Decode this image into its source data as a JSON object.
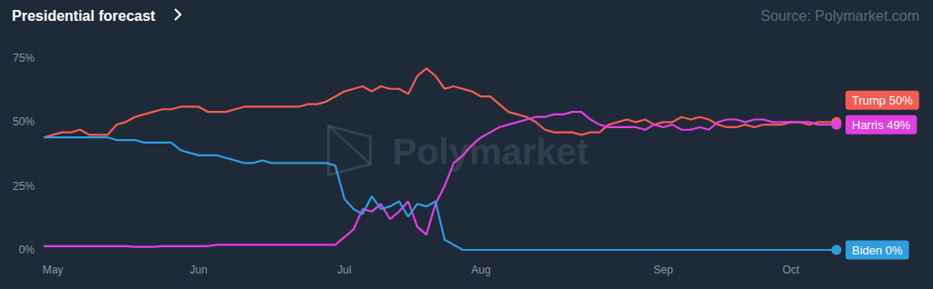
{
  "chart_data": {
    "type": "line",
    "title": "Presidential forecast",
    "source": "Source: Polymarket.com",
    "watermark": "Polymarket",
    "categories": [
      null,
      "May",
      null,
      null,
      null,
      null,
      null,
      null,
      null,
      null,
      null,
      null,
      null,
      null,
      null,
      null,
      null,
      "Jun",
      null,
      null,
      null,
      null,
      null,
      null,
      null,
      null,
      null,
      null,
      null,
      null,
      null,
      null,
      null,
      "Jul",
      null,
      null,
      null,
      null,
      null,
      null,
      null,
      null,
      null,
      null,
      null,
      null,
      null,
      null,
      "Aug",
      null,
      null,
      null,
      null,
      null,
      null,
      null,
      null,
      null,
      null,
      null,
      null,
      null,
      null,
      null,
      null,
      null,
      null,
      null,
      "Sep",
      null,
      null,
      null,
      null,
      null,
      null,
      null,
      null,
      null,
      null,
      null,
      null,
      null,
      "Oct",
      null,
      null,
      null,
      null,
      null
    ],
    "series": [
      {
        "name": "Trump",
        "color": "#f45b52",
        "end_label": "Trump 50%",
        "values": [
          44,
          45,
          46,
          46,
          47,
          45,
          45,
          45,
          49,
          50,
          52,
          53,
          54,
          55,
          55,
          56,
          56,
          56,
          54,
          54,
          54,
          55,
          56,
          56,
          56,
          56,
          56,
          56,
          56,
          57,
          57,
          58,
          60,
          62,
          63,
          64,
          62,
          64,
          63,
          63,
          61,
          68,
          71,
          68,
          63,
          64,
          63,
          62,
          60,
          60,
          57,
          54,
          53,
          52,
          50,
          47,
          46,
          46,
          46,
          45,
          46,
          46,
          49,
          50,
          51,
          50,
          51,
          49,
          50,
          50,
          52,
          51,
          52,
          51,
          49,
          48,
          48,
          49,
          48,
          49,
          49,
          49,
          50,
          50,
          49,
          50,
          50,
          50
        ]
      },
      {
        "name": "Harris",
        "color": "#e23fe0",
        "end_label": "Harris 49%",
        "values": [
          1.5,
          1.5,
          1.5,
          1.5,
          1.5,
          1.5,
          1.5,
          1.5,
          1.5,
          1.5,
          1.2,
          1.2,
          1.2,
          1.5,
          1.5,
          1.5,
          1.5,
          1.5,
          1.5,
          2,
          2,
          2,
          2,
          2,
          2,
          2,
          2,
          2,
          2,
          2,
          2,
          2,
          2,
          5,
          8,
          16,
          15,
          18,
          12,
          15,
          19,
          9,
          6,
          18,
          25,
          34,
          37,
          41,
          44,
          46,
          48,
          49,
          50,
          51,
          52,
          52,
          53,
          53,
          54,
          54,
          51,
          49,
          48,
          48,
          48,
          48,
          47,
          49,
          48,
          49,
          47,
          47,
          48,
          47,
          50,
          51,
          51,
          50,
          51,
          51,
          50,
          50,
          50,
          50,
          50,
          49,
          49,
          49
        ]
      },
      {
        "name": "Biden",
        "color": "#2e9ddd",
        "end_label": "Biden 0%",
        "values": [
          44,
          44,
          44,
          44,
          44,
          44,
          44,
          44,
          43,
          43,
          43,
          42,
          42,
          42,
          42,
          39,
          38,
          37,
          37,
          37,
          36,
          35,
          34,
          34,
          35,
          34,
          34,
          34,
          34,
          34,
          34,
          34,
          33,
          20,
          16,
          14,
          21,
          16,
          17,
          19,
          13,
          18,
          17,
          19,
          4,
          2,
          0,
          0,
          0,
          0,
          0,
          0,
          0,
          0,
          0,
          0,
          0,
          0,
          0,
          0,
          0,
          0,
          0,
          0,
          0,
          0,
          0,
          0,
          0,
          0,
          0,
          0,
          0,
          0,
          0,
          0,
          0,
          0,
          0,
          0,
          0,
          0,
          0,
          0,
          0,
          0,
          0,
          0
        ]
      }
    ],
    "ylim": [
      0,
      75
    ],
    "yticks": [
      {
        "value": 0,
        "label": "0%"
      },
      {
        "value": 25,
        "label": "25%"
      },
      {
        "value": 50,
        "label": "50%"
      },
      {
        "value": 75,
        "label": "75%"
      }
    ],
    "grid": false
  }
}
